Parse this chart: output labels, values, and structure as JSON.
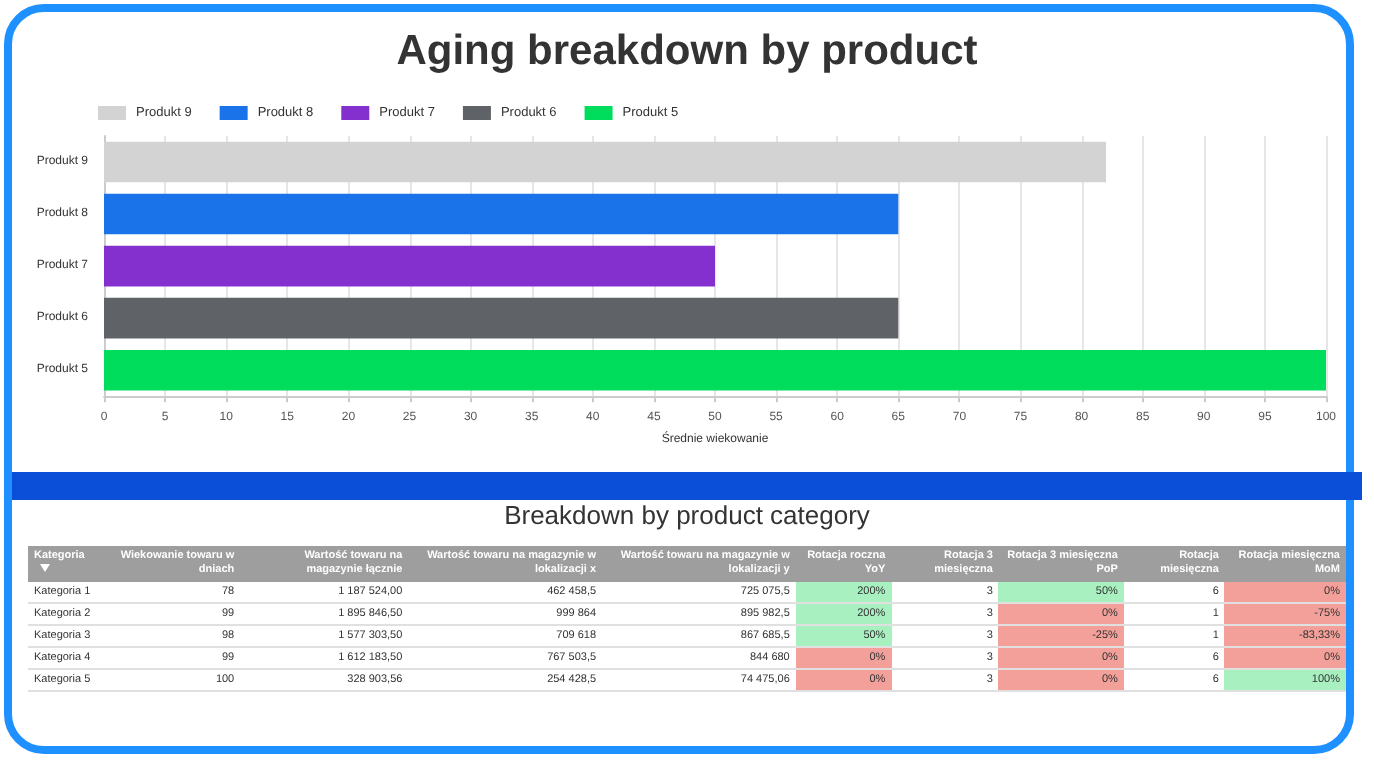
{
  "chart_data": [
    {
      "type": "bar",
      "title": "Aging breakdown by product",
      "orientation": "horizontal",
      "stacked": true,
      "xlabel": "Średnie wiekowanie",
      "categories": [
        "Produkt 9",
        "Produkt 8",
        "Produkt 7",
        "Produkt 6",
        "Produkt 5"
      ],
      "series": [
        {
          "name": "Produkt 9",
          "color": "#d3d3d3",
          "values": [
            82,
            null,
            null,
            null,
            null
          ]
        },
        {
          "name": "Produkt 8",
          "color": "#1a73e8",
          "values": [
            null,
            65,
            null,
            null,
            null
          ]
        },
        {
          "name": "Produkt 7",
          "color": "#8430ce",
          "values": [
            null,
            null,
            50,
            null,
            null
          ]
        },
        {
          "name": "Produkt 6",
          "color": "#5f6368",
          "values": [
            null,
            null,
            null,
            65,
            null
          ]
        },
        {
          "name": "Produkt 5",
          "color": "#00dd5d",
          "values": [
            null,
            null,
            null,
            null,
            100
          ]
        }
      ],
      "xlim": [
        0,
        100
      ],
      "xticks": [
        0,
        5,
        10,
        15,
        20,
        25,
        30,
        35,
        40,
        45,
        50,
        55,
        60,
        65,
        70,
        75,
        80,
        85,
        90,
        95,
        100
      ],
      "grid": "x",
      "legend": "top left"
    },
    {
      "type": "other",
      "title": "Breakdown by product category",
      "ylabel": "Kategoria",
      "categories": [
        "Wiekowanie towaru w dniach",
        "Wartość towaru na magazynie łącznie",
        "Wartość towaru na magazynie w lokalizacji x",
        "Wartość towaru na magazynie w lokalizacji y",
        "Rotacja roczna YoY",
        "Rotacja 3 miesięczna",
        "Rotacja 3 miesięczna PoP",
        "Rotacja miesięczna",
        "Rotacja miesięczna MoM"
      ],
      "y_categories": [
        "Kategoria 1",
        "Kategoria 2",
        "Kategoria 3",
        "Kategoria 4",
        "Kategoria 5"
      ],
      "cell_labels": [
        [
          "78",
          "1 187 524,00",
          "462 458,5",
          "725 075,5",
          "200%",
          "3",
          "50%",
          "6",
          "0%"
        ],
        [
          "99",
          "1 895 846,50",
          "999 864",
          "895 982,5",
          "200%",
          "3",
          "0%",
          "1",
          "-75%"
        ],
        [
          "98",
          "1 577 303,50",
          "709 618",
          "867 685,5",
          "50%",
          "3",
          "-25%",
          "1",
          "-83,33%"
        ],
        [
          "99",
          "1 612 183,50",
          "767 503,5",
          "844 680",
          "0%",
          "3",
          "0%",
          "6",
          "0%"
        ],
        [
          "100",
          "328 903,56",
          "254 428,5",
          "74 475,06",
          "0%",
          "3",
          "0%",
          "6",
          "100%"
        ]
      ],
      "colors": [
        [
          null,
          null,
          null,
          null,
          "#a8f0c0",
          null,
          "#a8f0c0",
          null,
          "#f4a09a"
        ],
        [
          null,
          null,
          null,
          null,
          "#a8f0c0",
          null,
          "#f4a09a",
          null,
          "#f4a09a"
        ],
        [
          null,
          null,
          null,
          null,
          "#a8f0c0",
          null,
          "#f4a09a",
          null,
          "#f4a09a"
        ],
        [
          null,
          null,
          null,
          null,
          "#f4a09a",
          null,
          "#f4a09a",
          null,
          "#f4a09a"
        ],
        [
          null,
          null,
          null,
          null,
          "#f4a09a",
          null,
          "#f4a09a",
          null,
          "#a8f0c0"
        ]
      ]
    }
  ]
}
